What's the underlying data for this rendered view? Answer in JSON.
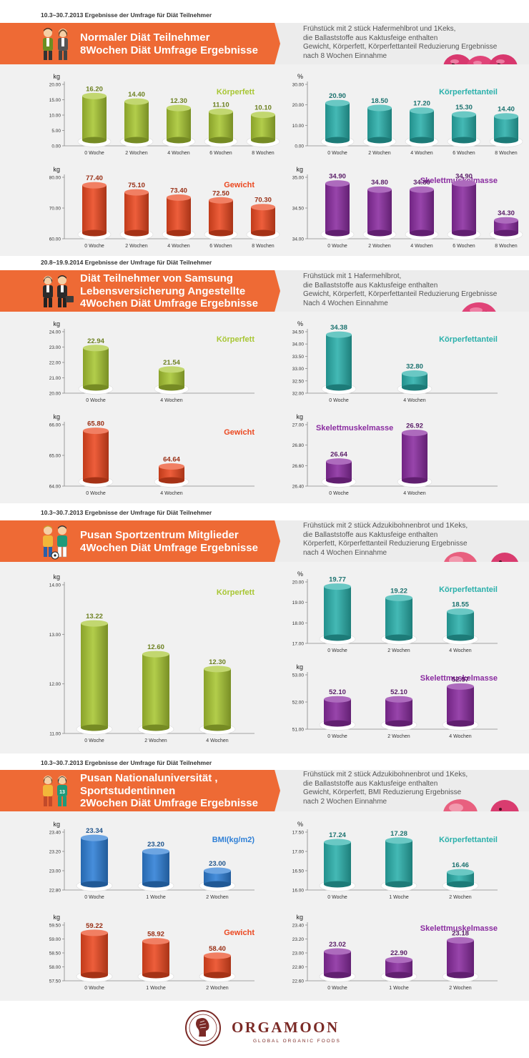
{
  "sections": [
    {
      "date": "10.3~30.7.2013 Ergebnisse der Umfrage für Diät Teilnehmer",
      "title_lines": [
        "Normaler Diät Teilnehmer",
        "8Wochen Diät Umfrage Ergebnisse"
      ],
      "desc_lines": [
        "Frühstück mit 2 stück Hafermehlbrot und 1Keks,",
        "die Ballaststoffe aus Kaktusfeige enthalten",
        "Gewicht, Körperfett, Körperfettanteil Reduzierung Ergebnisse",
        "nach 8 Wochen Einnahme"
      ],
      "icon": "people-icon",
      "product": "oat-cookie-icon"
    },
    {
      "date": "20.8~19.9.2014 Ergebnisse der Umfrage für Diät Teilnehmer",
      "title_lines": [
        "Diät Teilnehmer von Samsung",
        "Lebensversicherung Angestellte",
        "4Wochen Diät Umfrage Ergebnisse"
      ],
      "desc_lines": [
        "Frühstück mit 1 Hafermehlbrot,",
        "die Ballaststoffe aus Kaktusfeige enthalten",
        "Gewicht, Körperfett, Körperfettanteil Reduzierung Ergebnisse",
        "Nach 4 Wochen Einnahme"
      ],
      "icon": "office-workers-icon",
      "product": "oat-cookie-icon"
    },
    {
      "date": "10.3~30.7.2013 Ergebnisse der Umfrage für Diät Teilnehmer",
      "title_lines": [
        "Pusan Sportzentrum Mitglieder",
        "4Wochen Diät Umfrage Ergebnisse"
      ],
      "desc_lines": [
        "Frühstück mit 2 stück Adzukibohnenbrot und 1Keks,",
        "die Ballaststoffe aus Kaktusfeige enthalten",
        "Körperfett, Körperfettanteil Reduzierung Ergebnisse",
        "nach 4 Wochen Einnahme"
      ],
      "icon": "sport-people-icon",
      "product": "adzuki-bread-icon"
    },
    {
      "date": "10.3~30.7.2013 Ergebnisse der Umfrage für Diät Teilnehmer",
      "title_lines": [
        "Pusan  Nationaluniversität ,",
        "Sportstudentinnen",
        "2Wochen Diät Umfrage Ergebnisse"
      ],
      "desc_lines": [
        "Frühstück mit 2 stück Adzukibohnenbrot und 1Keks,",
        "die Ballaststoffe aus Kaktusfeige enthalten",
        "Gewicht, Körperfett, BMI Reduzierung Ergebnisse",
        "nach 2 Wochen Einnahme"
      ],
      "icon": "student-athletes-icon",
      "product": "adzuki-bread-icon"
    }
  ],
  "chart_data": [
    {
      "type": "bar",
      "title": "Körperfett",
      "ylabel": "kg",
      "categories": [
        "0 Woche",
        "2 Wochen",
        "4 Wochen",
        "6 Wochen",
        "8 Wochen"
      ],
      "values": [
        16.2,
        14.4,
        12.3,
        11.1,
        10.1
      ],
      "labels": [
        "16.20",
        "14.40",
        "12.30",
        "11.10",
        "10.10"
      ],
      "ylim": [
        0,
        20
      ],
      "yticks": [
        "0.00",
        "5.00",
        "10.00",
        "15.00",
        "20.00"
      ],
      "color": "#a8c633"
    },
    {
      "type": "bar",
      "title": "Körperfettanteil",
      "ylabel": "%",
      "categories": [
        "0 Woche",
        "2 Wochen",
        "4 Wochen",
        "6 Wochen",
        "8 Wochen"
      ],
      "values": [
        20.9,
        18.5,
        17.2,
        15.3,
        14.4
      ],
      "labels": [
        "20.90",
        "18.50",
        "17.20",
        "15.30",
        "14.40"
      ],
      "ylim": [
        0,
        30
      ],
      "yticks": [
        "0.00",
        "10.00",
        "20.00",
        "30.00"
      ],
      "color": "#2ab0ab"
    },
    {
      "type": "bar",
      "title": "Gewicht",
      "ylabel": "kg",
      "categories": [
        "0 Woche",
        "2 Wochen",
        "4 Wochen",
        "6 Wochen",
        "8 Wochen"
      ],
      "values": [
        77.4,
        75.1,
        73.4,
        72.5,
        70.3
      ],
      "labels": [
        "77.40",
        "75.10",
        "73.40",
        "72.50",
        "70.30"
      ],
      "ylim": [
        60,
        80
      ],
      "yticks": [
        "60.00",
        "70.00",
        "80.00"
      ],
      "color": "#eb4820"
    },
    {
      "type": "bar",
      "title": "Skelettmuskelmasse",
      "ylabel": "kg",
      "categories": [
        "0 Woche",
        "2 Wochen",
        "4 Wochen",
        "6 Wochen",
        "8 Wochen"
      ],
      "values": [
        34.9,
        34.8,
        34.8,
        34.9,
        34.3
      ],
      "labels": [
        "34.90",
        "34.80",
        "34.80",
        "34.90",
        "34.30"
      ],
      "ylim": [
        34,
        35
      ],
      "yticks": [
        "34.00",
        "34.50",
        "35.00"
      ],
      "color": "#8a2ca0"
    },
    {
      "type": "bar",
      "title": "Körperfett",
      "ylabel": "kg",
      "categories": [
        "0 Woche",
        "4 Wochen"
      ],
      "values": [
        22.94,
        21.54
      ],
      "labels": [
        "22.94",
        "21.54"
      ],
      "ylim": [
        20,
        24
      ],
      "yticks": [
        "20.00",
        "21.00",
        "22.00",
        "23.00",
        "24.00"
      ],
      "color": "#a8c633"
    },
    {
      "type": "bar",
      "title": "Körperfettanteil",
      "ylabel": "%",
      "categories": [
        "0 Woche",
        "4 Wochen"
      ],
      "values": [
        34.38,
        32.8
      ],
      "labels": [
        "34.38",
        "32.80"
      ],
      "ylim": [
        32,
        34.5
      ],
      "yticks": [
        "32.00",
        "32.50",
        "33.00",
        "33.50",
        "34.00",
        "34.50"
      ],
      "color": "#2ab0ab"
    },
    {
      "type": "bar",
      "title": "Gewicht",
      "ylabel": "kg",
      "categories": [
        "0 Woche",
        "4 Wochen"
      ],
      "values": [
        65.8,
        64.64
      ],
      "labels": [
        "65.80",
        "64.64"
      ],
      "ylim": [
        64,
        66
      ],
      "yticks": [
        "64.00",
        "65.00",
        "66.00"
      ],
      "color": "#eb4820"
    },
    {
      "type": "bar",
      "title": "Skelettmuskelmasse",
      "ylabel": "kg",
      "categories": [
        "0 Woche",
        "4 Wochen"
      ],
      "values": [
        26.64,
        26.92
      ],
      "labels": [
        "26.64",
        "26.92"
      ],
      "ylim": [
        26.4,
        27
      ],
      "yticks": [
        "26.40",
        "26.60",
        "26.80",
        "27.00"
      ],
      "color": "#8a2ca0"
    },
    {
      "type": "bar",
      "title": "Körperfett",
      "ylabel": "kg",
      "categories": [
        "0 Woche",
        "2 Wochen",
        "4 Wochen"
      ],
      "values": [
        13.22,
        12.6,
        12.3
      ],
      "labels": [
        "13.22",
        "12.60",
        "12.30"
      ],
      "ylim": [
        11,
        14
      ],
      "yticks": [
        "11.00",
        "12.00",
        "13.00",
        "14.00"
      ],
      "color": "#a8c633"
    },
    {
      "type": "bar",
      "title": "Körperfettanteil",
      "ylabel": "%",
      "categories": [
        "0 Woche",
        "2 Wochen",
        "4 Wochen"
      ],
      "values": [
        19.77,
        19.22,
        18.55
      ],
      "labels": [
        "19.77",
        "19.22",
        "18.55"
      ],
      "ylim": [
        17,
        20
      ],
      "yticks": [
        "17.00",
        "18.00",
        "19.00",
        "20.00"
      ],
      "color": "#2ab0ab"
    },
    {
      "type": "bar",
      "title": "Skelettmuskelmasse",
      "ylabel": "kg",
      "categories": [
        "0 Woche",
        "2 Wochen",
        "4 Wochen"
      ],
      "values": [
        52.1,
        52.1,
        52.57
      ],
      "labels": [
        "52.10",
        "52.10",
        "52.57"
      ],
      "ylim": [
        51,
        53
      ],
      "yticks": [
        "51.00",
        "52.00",
        "53.00"
      ],
      "color": "#8a2ca0"
    },
    {
      "type": "bar",
      "title": "BMI(kg/m2)",
      "ylabel": "kg",
      "categories": [
        "0 Woche",
        "1 Woche",
        "2 Wochen"
      ],
      "values": [
        23.34,
        23.2,
        23.0
      ],
      "labels": [
        "23.34",
        "23.20",
        "23.00"
      ],
      "ylim": [
        22.8,
        23.4
      ],
      "yticks": [
        "22.80",
        "23.00",
        "23.20",
        "23.40"
      ],
      "color": "#2e7fd6"
    },
    {
      "type": "bar",
      "title": "Körperfettanteil",
      "ylabel": "%",
      "categories": [
        "0 Woche",
        "1 Woche",
        "2 Wochen"
      ],
      "values": [
        17.24,
        17.28,
        16.46
      ],
      "labels": [
        "17.24",
        "17.28",
        "16.46"
      ],
      "ylim": [
        16,
        17.5
      ],
      "yticks": [
        "16.00",
        "16.50",
        "17.00",
        "17.50"
      ],
      "color": "#2ab0ab"
    },
    {
      "type": "bar",
      "title": "Gewicht",
      "ylabel": "kg",
      "categories": [
        "0 Woche",
        "1 Woche",
        "2 Wochen"
      ],
      "values": [
        59.22,
        58.92,
        58.4
      ],
      "labels": [
        "59.22",
        "58.92",
        "58.40"
      ],
      "ylim": [
        57.5,
        59.5
      ],
      "yticks": [
        "57.50",
        "58.00",
        "58.50",
        "59.00",
        "59.50"
      ],
      "color": "#eb4820"
    },
    {
      "type": "bar",
      "title": "Skelettmuskelmasse",
      "ylabel": "kg",
      "categories": [
        "0 Woche",
        "1 Woche",
        "2 Wochen"
      ],
      "values": [
        23.02,
        22.9,
        23.18
      ],
      "labels": [
        "23.02",
        "22.90",
        "23.18"
      ],
      "ylim": [
        22.6,
        23.4
      ],
      "yticks": [
        "22.60",
        "22.80",
        "23.00",
        "23.20",
        "23.40"
      ],
      "color": "#8a2ca0"
    }
  ],
  "brand": {
    "name": "ORGAMOON",
    "sub": "GLOBAL ORGANIC FOODS"
  }
}
